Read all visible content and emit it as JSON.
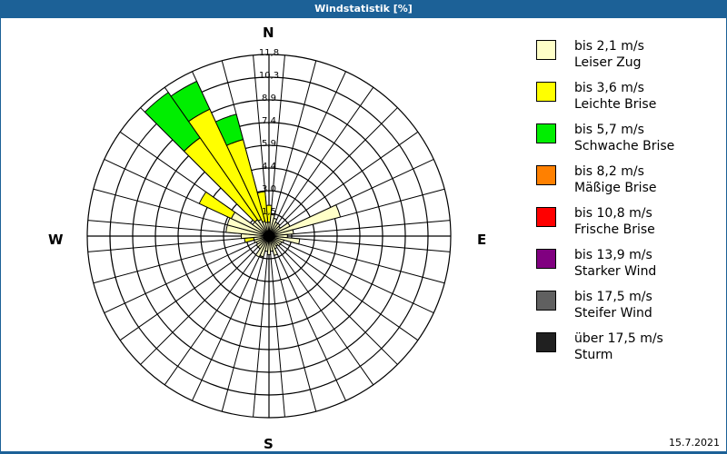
{
  "header": {
    "title": "Windstatistik [%]"
  },
  "compass": {
    "north": "N",
    "east": "E",
    "south": "S",
    "west": "W"
  },
  "footer": {
    "date": "15.7.2021"
  },
  "legend": [
    {
      "range": "bis 2,1 m/s",
      "name": "Leiser Zug",
      "color": "#ffffc8"
    },
    {
      "range": "bis 3,6 m/s",
      "name": "Leichte Brise",
      "color": "#ffff00"
    },
    {
      "range": "bis 5,7 m/s",
      "name": "Schwache Brise",
      "color": "#00ee00"
    },
    {
      "range": "bis 8,2 m/s",
      "name": "Mäßige Brise",
      "color": "#ff8000"
    },
    {
      "range": "bis 10,8 m/s",
      "name": "Frische Brise",
      "color": "#ff0000"
    },
    {
      "range": "bis 13,9 m/s",
      "name": "Starker Wind",
      "color": "#800080"
    },
    {
      "range": "bis 17,5 m/s",
      "name": "Steifer Wind",
      "color": "#606060"
    },
    {
      "range": "über 17,5 m/s",
      "name": "Sturm",
      "color": "#202020"
    }
  ],
  "chart_data": {
    "type": "polar-stacked-bar",
    "title": "Windstatistik [%]",
    "ring_labels": [
      "1,5",
      "3,0",
      "4,4",
      "5,9",
      "7,4",
      "8,9",
      "10,3",
      "11,8"
    ],
    "rmax": 11.8,
    "sector_width_deg": 10,
    "directions_deg": [
      0,
      10,
      20,
      30,
      40,
      50,
      60,
      70,
      80,
      90,
      100,
      110,
      120,
      130,
      140,
      150,
      160,
      170,
      180,
      190,
      200,
      210,
      220,
      230,
      240,
      250,
      260,
      270,
      280,
      290,
      300,
      310,
      320,
      330,
      340,
      350
    ],
    "series": [
      {
        "name": "bis 2,1 m/s Leiser Zug",
        "color": "#ffffc8",
        "values": [
          0.9,
          1.4,
          1.2,
          1.0,
          1.0,
          0.9,
          1.5,
          4.8,
          1.6,
          1.2,
          2.0,
          1.0,
          0.9,
          0.9,
          0.8,
          0.9,
          1.3,
          1.0,
          1.2,
          1.0,
          1.4,
          1.5,
          1.0,
          1.0,
          0.9,
          1.0,
          1.0,
          1.8,
          2.8,
          2.8,
          2.7,
          1.3,
          1.3,
          1.2,
          1.0,
          0.9
        ]
      },
      {
        "name": "bis 3,6 m/s Leichte Brise",
        "color": "#ffff00",
        "values": [
          1.1,
          0,
          0,
          0,
          0,
          0,
          0,
          0,
          0,
          0,
          0,
          0,
          0,
          0,
          0,
          0,
          0,
          0,
          0,
          0,
          0,
          0,
          0,
          0,
          0,
          0,
          0.6,
          0,
          0,
          0,
          2.3,
          0,
          6.5,
          7.9,
          5.5,
          2.0
        ]
      },
      {
        "name": "bis 5,7 m/s Schwache Brise",
        "color": "#00ee00",
        "values": [
          0,
          0,
          0,
          0,
          0,
          0,
          0,
          0,
          0,
          0,
          0,
          0,
          0,
          0,
          0,
          0,
          0,
          0,
          0,
          0,
          0,
          0,
          0,
          0,
          0,
          0,
          0,
          0,
          0,
          0,
          0,
          0,
          3.6,
          2.0,
          1.7,
          0
        ]
      },
      {
        "name": "bis 8,2 m/s Mäßige Brise",
        "color": "#ff8000",
        "values": [
          0,
          0,
          0,
          0,
          0,
          0,
          0,
          0,
          0,
          0,
          0,
          0,
          0,
          0,
          0,
          0,
          0,
          0,
          0,
          0,
          0,
          0,
          0,
          0,
          0,
          0,
          0,
          0,
          0,
          0,
          0,
          0,
          0,
          0,
          0,
          0
        ]
      },
      {
        "name": "bis 10,8 m/s Frische Brise",
        "color": "#ff0000",
        "values": [
          0,
          0,
          0,
          0,
          0,
          0,
          0,
          0,
          0,
          0,
          0,
          0,
          0,
          0,
          0,
          0,
          0,
          0,
          0,
          0,
          0,
          0,
          0,
          0,
          0,
          0,
          0,
          0,
          0,
          0,
          0,
          0,
          0,
          0,
          0,
          0
        ]
      },
      {
        "name": "bis 13,9 m/s Starker Wind",
        "color": "#800080",
        "values": [
          0,
          0,
          0,
          0,
          0,
          0,
          0,
          0,
          0,
          0,
          0,
          0,
          0,
          0,
          0,
          0,
          0,
          0,
          0,
          0,
          0,
          0,
          0,
          0,
          0,
          0,
          0,
          0,
          0,
          0,
          0,
          0,
          0,
          0,
          0,
          0
        ]
      },
      {
        "name": "bis 17,5 m/s Steifer Wind",
        "color": "#606060",
        "values": [
          0,
          0,
          0,
          0,
          0,
          0,
          0,
          0,
          0,
          0,
          0,
          0,
          0,
          0,
          0,
          0,
          0,
          0,
          0,
          0,
          0,
          0,
          0,
          0,
          0,
          0,
          0,
          0,
          0,
          0,
          0,
          0,
          0,
          0,
          0,
          0
        ]
      },
      {
        "name": "über 17,5 m/s Sturm",
        "color": "#202020",
        "values": [
          0,
          0,
          0,
          0,
          0,
          0,
          0,
          0,
          0,
          0,
          0,
          0,
          0,
          0,
          0,
          0,
          0,
          0,
          0,
          0,
          0,
          0,
          0,
          0,
          0,
          0,
          0,
          0,
          0,
          0,
          0,
          0,
          0,
          0,
          0,
          0
        ]
      }
    ],
    "legend_position": "right",
    "grid": true
  }
}
